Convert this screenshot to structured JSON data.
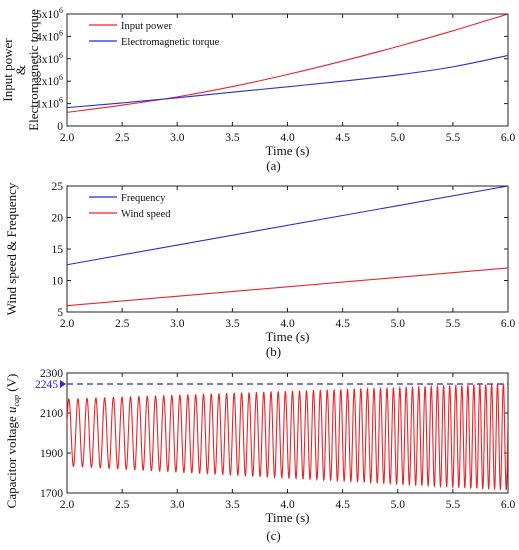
{
  "chart_data": [
    {
      "type": "line",
      "panel": "a",
      "caption": "(a)",
      "xlabel": "Time (s)",
      "ylabel_lines": [
        "Input power",
        "&",
        "Electromagnetic torque"
      ],
      "xlim": [
        2.0,
        6.0
      ],
      "ylim": [
        0,
        5000000
      ],
      "xticks": [
        "2.0",
        "2.5",
        "3.0",
        "3.5",
        "4.0",
        "4.5",
        "5.0",
        "5.5",
        "6.0"
      ],
      "yticks": [
        {
          "v": 0,
          "base": "0",
          "exp": ""
        },
        {
          "v": 1000000,
          "base": "1x10",
          "exp": "6"
        },
        {
          "v": 2000000,
          "base": "2x10",
          "exp": "6"
        },
        {
          "v": 3000000,
          "base": "3x10",
          "exp": "6"
        },
        {
          "v": 4000000,
          "base": "4x10",
          "exp": "6"
        },
        {
          "v": 5000000,
          "base": "5x10",
          "exp": "6"
        }
      ],
      "legend_position": "top-left",
      "series": [
        {
          "name": "Input power",
          "color": "#e8262a",
          "x": [
            2.0,
            2.5,
            3.0,
            3.5,
            4.0,
            4.5,
            5.0,
            5.5,
            6.0
          ],
          "y": [
            610000,
            930000,
            1300000,
            1760000,
            2300000,
            2900000,
            3550000,
            4250000,
            5000000
          ]
        },
        {
          "name": "Electromagnetic torque",
          "color": "#2b2bd6",
          "x": [
            2.0,
            2.5,
            3.0,
            3.5,
            4.0,
            4.5,
            5.0,
            5.5,
            6.0
          ],
          "y": [
            820000,
            1030000,
            1260000,
            1510000,
            1750000,
            2000000,
            2280000,
            2640000,
            3150000
          ]
        }
      ]
    },
    {
      "type": "line",
      "panel": "b",
      "caption": "(b)",
      "xlabel": "Time (s)",
      "ylabel": "Wind speed & Frequency",
      "xlim": [
        2.0,
        6.0
      ],
      "ylim": [
        5,
        25
      ],
      "xticks": [
        "2.0",
        "2.5",
        "3.0",
        "3.5",
        "4.0",
        "4.5",
        "5.0",
        "5.5",
        "6.0"
      ],
      "yticks": [
        "5",
        "10",
        "15",
        "20",
        "25"
      ],
      "legend_position": "top-left",
      "series": [
        {
          "name": "Frequency",
          "color": "#2b2bd6",
          "x": [
            2.0,
            6.0
          ],
          "y": [
            12.5,
            25.0
          ]
        },
        {
          "name": "Wind speed",
          "color": "#e8262a",
          "x": [
            2.0,
            6.0
          ],
          "y": [
            6.0,
            12.0
          ]
        }
      ]
    },
    {
      "type": "line",
      "panel": "c",
      "caption": "(c)",
      "xlabel": "Time (s)",
      "ylabel_main": "Capacitor voltage ",
      "ylabel_var": "u",
      "ylabel_sub": "cap",
      "ylabel_unit": " (V)",
      "xlim": [
        2.0,
        6.0
      ],
      "ylim": [
        1700,
        2300
      ],
      "xticks": [
        "2.0",
        "2.5",
        "3.0",
        "3.5",
        "4.0",
        "4.5",
        "5.0",
        "5.5",
        "6.0"
      ],
      "yticks": [
        "1700",
        "1900",
        "2100",
        "2300"
      ],
      "reference_line": {
        "value": 2245,
        "label": "2245",
        "color": "#2b2bd6",
        "style": "dashed"
      },
      "series": [
        {
          "name": "",
          "color": "#e8262a",
          "kind": "oscillation",
          "t_start": 2.0,
          "t_end": 6.0,
          "frequency_start_hz": 12,
          "frequency_end_hz": 19,
          "max_start": 2170,
          "max_end": 2245,
          "min_start": 1835,
          "min_end": 1715
        }
      ]
    }
  ]
}
